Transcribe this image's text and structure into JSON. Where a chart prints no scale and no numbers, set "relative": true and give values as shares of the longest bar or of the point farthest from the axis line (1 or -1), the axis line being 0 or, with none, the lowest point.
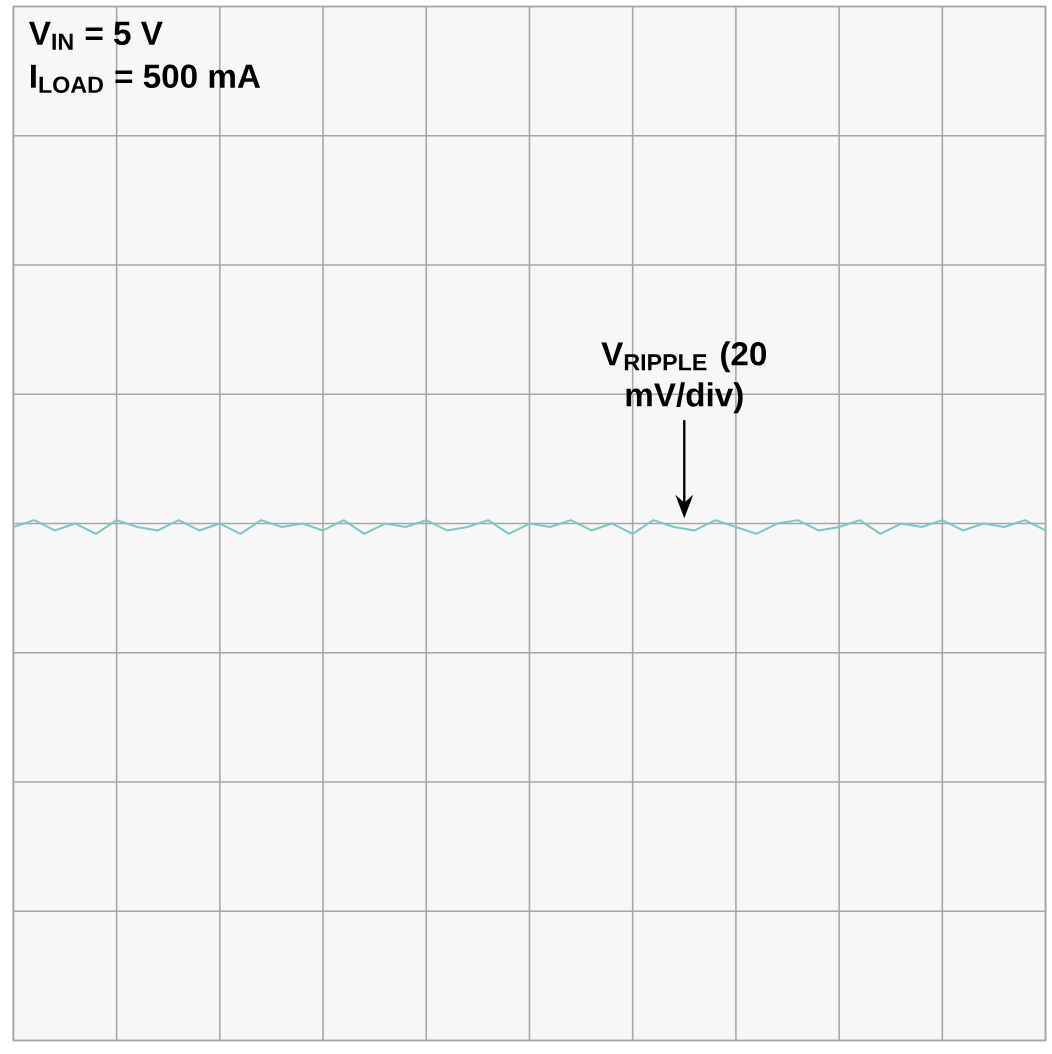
{
  "chart_data": {
    "type": "line",
    "relative": true,
    "categories": [
      null,
      null,
      null,
      null,
      null,
      null,
      null,
      null,
      null,
      null,
      null,
      null,
      null,
      null,
      null,
      null,
      null,
      null,
      null,
      null,
      null,
      null,
      null,
      null,
      null,
      null,
      null,
      null,
      null,
      null,
      null,
      null,
      null,
      null,
      null,
      null,
      null,
      null,
      null,
      null,
      null,
      null,
      null,
      null,
      null,
      null,
      null,
      null,
      null,
      null,
      null
    ],
    "series": [
      {
        "color": "#7cc6c8",
        "values": [
          -0.33,
          0.33,
          -0.67,
          0,
          -1,
          0.33,
          -0.33,
          -0.67,
          0.33,
          -0.67,
          0,
          -1,
          0.33,
          -0.33,
          0,
          -0.67,
          0.33,
          -1,
          0,
          -0.33,
          0.33,
          -0.67,
          -0.33,
          0.33,
          -1,
          0,
          -0.33,
          0.33,
          -0.67,
          0,
          -1,
          0.33,
          -0.33,
          -0.67,
          0.33,
          -0.33,
          -1,
          0,
          0.33,
          -0.67,
          -0.33,
          0.33,
          -1,
          0,
          -0.33,
          0.33,
          -0.67,
          0,
          -0.33,
          0.33,
          -0.67
        ]
      }
    ],
    "grid": true,
    "line_style": "solid",
    "marker": "none",
    "annotations": [
      "V$_{IN}$ = 5 V",
      "I$_{LOAD}$ = 500 mA",
      "V$_{RIPPLE}$ (20 mV/div)"
    ]
  }
}
